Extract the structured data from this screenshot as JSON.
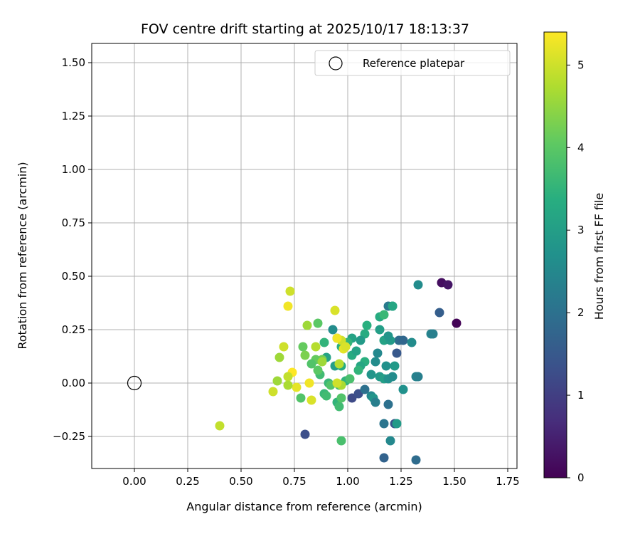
{
  "chart_data": {
    "type": "scatter",
    "title": "FOV centre drift starting at 2025/10/17 18:13:37",
    "xlabel": "Angular distance from reference (arcmin)",
    "ylabel": "Rotation from reference (arcmin)",
    "xlim": [
      -0.2,
      1.8
    ],
    "ylim": [
      -0.4,
      1.6
    ],
    "xticks": [
      "0.00",
      "0.25",
      "0.50",
      "0.75",
      "1.00",
      "1.25",
      "1.50",
      "1.75"
    ],
    "yticks": [
      "−0.25",
      "0.00",
      "0.25",
      "0.50",
      "0.75",
      "1.00",
      "1.25",
      "1.50"
    ],
    "grid": true,
    "colormap": "viridis",
    "colorbar": {
      "label": "Hours from first FF file",
      "range": [
        0,
        5.4
      ],
      "ticks": [
        "0",
        "1",
        "2",
        "3",
        "4",
        "5"
      ]
    },
    "legend": {
      "position": "top-right",
      "entries": [
        "Reference platepar"
      ]
    },
    "reference_point": {
      "x": 0.0,
      "y": 0.0
    },
    "points": [
      {
        "x": 1.44,
        "y": 0.47,
        "t": 0.2
      },
      {
        "x": 1.47,
        "y": 0.46,
        "t": 0.3
      },
      {
        "x": 1.51,
        "y": 0.28,
        "t": 0.05
      },
      {
        "x": 1.43,
        "y": 0.33,
        "t": 1.6
      },
      {
        "x": 1.33,
        "y": 0.46,
        "t": 2.6
      },
      {
        "x": 1.39,
        "y": 0.23,
        "t": 2.4
      },
      {
        "x": 1.4,
        "y": 0.23,
        "t": 2.3
      },
      {
        "x": 1.24,
        "y": 0.2,
        "t": 1.9
      },
      {
        "x": 1.26,
        "y": 0.2,
        "t": 1.8
      },
      {
        "x": 1.23,
        "y": 0.14,
        "t": 1.5
      },
      {
        "x": 1.21,
        "y": 0.36,
        "t": 2.8
      },
      {
        "x": 1.19,
        "y": 0.36,
        "t": 2.2
      },
      {
        "x": 1.3,
        "y": 0.19,
        "t": 2.6
      },
      {
        "x": 1.32,
        "y": 0.03,
        "t": 2.4
      },
      {
        "x": 1.33,
        "y": 0.03,
        "t": 2.3
      },
      {
        "x": 1.26,
        "y": -0.03,
        "t": 2.7
      },
      {
        "x": 1.22,
        "y": -0.19,
        "t": 1.4
      },
      {
        "x": 1.23,
        "y": -0.19,
        "t": 2.9
      },
      {
        "x": 1.2,
        "y": -0.27,
        "t": 2.5
      },
      {
        "x": 1.17,
        "y": -0.35,
        "t": 1.7
      },
      {
        "x": 1.32,
        "y": -0.36,
        "t": 1.9
      },
      {
        "x": 1.17,
        "y": -0.19,
        "t": 2.1
      },
      {
        "x": 1.19,
        "y": -0.1,
        "t": 2.0
      },
      {
        "x": 0.8,
        "y": -0.24,
        "t": 1.3
      },
      {
        "x": 0.97,
        "y": -0.27,
        "t": 3.8
      },
      {
        "x": 1.02,
        "y": -0.07,
        "t": 1.2
      },
      {
        "x": 1.05,
        "y": -0.05,
        "t": 1.3
      },
      {
        "x": 1.08,
        "y": -0.03,
        "t": 2.0
      },
      {
        "x": 1.11,
        "y": -0.06,
        "t": 2.5
      },
      {
        "x": 1.12,
        "y": -0.07,
        "t": 2.8
      },
      {
        "x": 1.13,
        "y": -0.09,
        "t": 2.3
      },
      {
        "x": 1.15,
        "y": 0.03,
        "t": 2.9
      },
      {
        "x": 1.17,
        "y": 0.02,
        "t": 3.0
      },
      {
        "x": 1.19,
        "y": 0.02,
        "t": 2.7
      },
      {
        "x": 1.21,
        "y": 0.03,
        "t": 2.6
      },
      {
        "x": 1.11,
        "y": 0.04,
        "t": 2.8
      },
      {
        "x": 1.14,
        "y": 0.14,
        "t": 2.5
      },
      {
        "x": 1.18,
        "y": 0.08,
        "t": 2.7
      },
      {
        "x": 1.22,
        "y": 0.08,
        "t": 2.9
      },
      {
        "x": 1.13,
        "y": 0.1,
        "t": 2.6
      },
      {
        "x": 1.17,
        "y": 0.2,
        "t": 3.1
      },
      {
        "x": 1.2,
        "y": 0.2,
        "t": 2.9
      },
      {
        "x": 1.19,
        "y": 0.22,
        "t": 2.8
      },
      {
        "x": 1.15,
        "y": 0.25,
        "t": 3.0
      },
      {
        "x": 1.15,
        "y": 0.31,
        "t": 3.3
      },
      {
        "x": 1.17,
        "y": 0.32,
        "t": 3.6
      },
      {
        "x": 1.21,
        "y": 0.36,
        "t": 3.2
      },
      {
        "x": 1.09,
        "y": 0.27,
        "t": 3.4
      },
      {
        "x": 1.08,
        "y": 0.23,
        "t": 3.3
      },
      {
        "x": 1.06,
        "y": 0.2,
        "t": 2.9
      },
      {
        "x": 1.02,
        "y": 0.21,
        "t": 3.1
      },
      {
        "x": 1.0,
        "y": 0.19,
        "t": 3.5
      },
      {
        "x": 1.02,
        "y": 0.13,
        "t": 3.3
      },
      {
        "x": 1.04,
        "y": 0.15,
        "t": 3.1
      },
      {
        "x": 1.08,
        "y": 0.1,
        "t": 3.4
      },
      {
        "x": 1.06,
        "y": 0.08,
        "t": 3.2
      },
      {
        "x": 1.05,
        "y": 0.06,
        "t": 3.5
      },
      {
        "x": 0.93,
        "y": 0.25,
        "t": 2.6
      },
      {
        "x": 0.95,
        "y": 0.21,
        "t": 2.8
      },
      {
        "x": 0.97,
        "y": 0.17,
        "t": 3.4
      },
      {
        "x": 0.89,
        "y": 0.19,
        "t": 3.5
      },
      {
        "x": 0.9,
        "y": 0.12,
        "t": 3.1
      },
      {
        "x": 0.94,
        "y": 0.08,
        "t": 3.0
      },
      {
        "x": 0.97,
        "y": 0.08,
        "t": 3.3
      },
      {
        "x": 0.99,
        "y": 0.01,
        "t": 3.5
      },
      {
        "x": 0.96,
        "y": -0.01,
        "t": 3.7
      },
      {
        "x": 1.01,
        "y": 0.02,
        "t": 3.8
      },
      {
        "x": 0.91,
        "y": 0.0,
        "t": 3.6
      },
      {
        "x": 0.92,
        "y": -0.01,
        "t": 3.9
      },
      {
        "x": 0.89,
        "y": -0.05,
        "t": 3.6
      },
      {
        "x": 0.9,
        "y": -0.06,
        "t": 3.7
      },
      {
        "x": 0.95,
        "y": -0.09,
        "t": 3.5
      },
      {
        "x": 0.96,
        "y": -0.11,
        "t": 3.7
      },
      {
        "x": 0.97,
        "y": -0.07,
        "t": 3.9
      },
      {
        "x": 0.78,
        "y": -0.07,
        "t": 3.9
      },
      {
        "x": 0.87,
        "y": 0.04,
        "t": 3.7
      },
      {
        "x": 0.88,
        "y": 0.11,
        "t": 4.2
      },
      {
        "x": 0.85,
        "y": 0.11,
        "t": 4.1
      },
      {
        "x": 0.83,
        "y": 0.09,
        "t": 3.9
      },
      {
        "x": 0.86,
        "y": 0.06,
        "t": 4.0
      },
      {
        "x": 0.79,
        "y": 0.17,
        "t": 4.1
      },
      {
        "x": 0.8,
        "y": 0.13,
        "t": 4.3
      },
      {
        "x": 0.86,
        "y": 0.28,
        "t": 4.0
      },
      {
        "x": 0.81,
        "y": 0.27,
        "t": 4.6
      },
      {
        "x": 0.85,
        "y": 0.17,
        "t": 4.8
      },
      {
        "x": 0.88,
        "y": 0.1,
        "t": 4.6
      },
      {
        "x": 0.97,
        "y": 0.2,
        "t": 5.0
      },
      {
        "x": 0.95,
        "y": 0.21,
        "t": 5.3
      },
      {
        "x": 0.98,
        "y": 0.16,
        "t": 5.2
      },
      {
        "x": 0.99,
        "y": 0.17,
        "t": 5.1
      },
      {
        "x": 0.94,
        "y": 0.34,
        "t": 5.1
      },
      {
        "x": 0.96,
        "y": 0.09,
        "t": 4.8
      },
      {
        "x": 0.97,
        "y": -0.01,
        "t": 4.7
      },
      {
        "x": 0.95,
        "y": 0.0,
        "t": 5.0
      },
      {
        "x": 0.73,
        "y": 0.43,
        "t": 5.0
      },
      {
        "x": 0.72,
        "y": 0.36,
        "t": 5.3
      },
      {
        "x": 0.7,
        "y": 0.17,
        "t": 5.0
      },
      {
        "x": 0.68,
        "y": 0.12,
        "t": 4.6
      },
      {
        "x": 0.82,
        "y": 0.0,
        "t": 5.3
      },
      {
        "x": 0.83,
        "y": -0.08,
        "t": 5.1
      },
      {
        "x": 0.76,
        "y": -0.02,
        "t": 5.2
      },
      {
        "x": 0.74,
        "y": 0.05,
        "t": 5.4
      },
      {
        "x": 0.72,
        "y": 0.03,
        "t": 4.9
      },
      {
        "x": 0.72,
        "y": -0.01,
        "t": 4.7
      },
      {
        "x": 0.67,
        "y": 0.01,
        "t": 4.6
      },
      {
        "x": 0.65,
        "y": -0.04,
        "t": 5.0
      },
      {
        "x": 0.4,
        "y": -0.2,
        "t": 4.9
      }
    ]
  }
}
